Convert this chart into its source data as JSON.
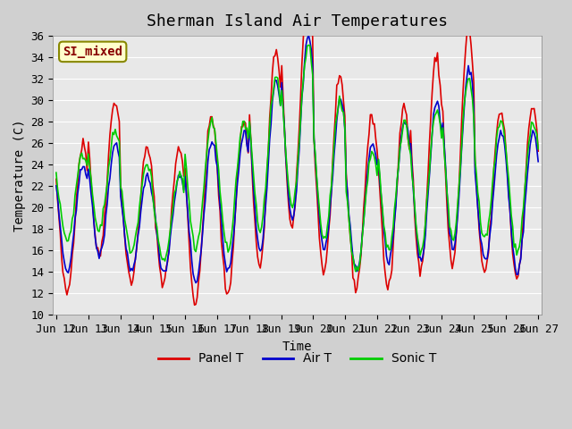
{
  "title": "Sherman Island Air Temperatures",
  "xlabel": "Time",
  "ylabel": "Temperature (C)",
  "ylim": [
    10,
    36
  ],
  "xlim": [
    0,
    15
  ],
  "xtick_labels": [
    "Jun 12",
    "Jun 13",
    "Jun 14",
    "Jun 15",
    "Jun 16",
    "Jun 17",
    "Jun 18",
    "Jun 19",
    "Jun 20",
    "Jun 21",
    "Jun 22",
    "Jun 23",
    "Jun 24",
    "Jun 25",
    "Jun 26",
    "Jun 27"
  ],
  "ytick_values": [
    10,
    12,
    14,
    16,
    18,
    20,
    22,
    24,
    26,
    28,
    30,
    32,
    34,
    36
  ],
  "background_color": "#e8e8e8",
  "panel_color": "#dd0000",
  "air_color": "#0000cc",
  "sonic_color": "#00cc00",
  "legend_entries": [
    "Panel T",
    "Air T",
    "Sonic T"
  ],
  "si_label": "SI_mixed",
  "si_label_color": "#880000",
  "si_label_bg": "#ffffcc",
  "title_fontsize": 13,
  "axis_label_fontsize": 10,
  "tick_fontsize": 9,
  "legend_fontsize": 10
}
